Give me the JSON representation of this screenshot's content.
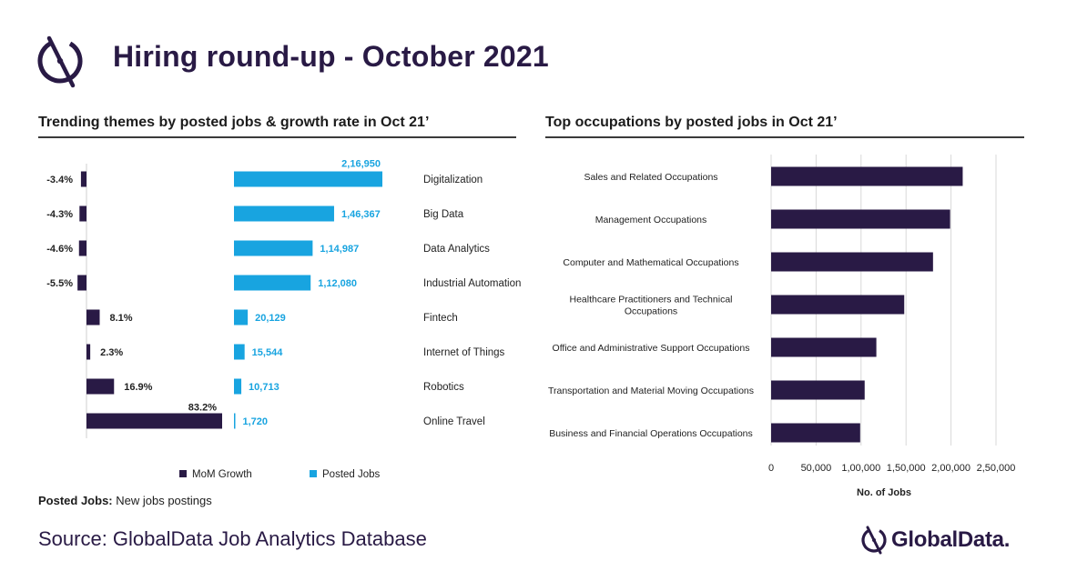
{
  "title": "Hiring round-up - October 2021",
  "colors": {
    "navy": "#291a45",
    "blue": "#18a4e0"
  },
  "left_section": {
    "title": "Trending themes by posted jobs & growth rate in Oct 21’",
    "legend": {
      "mom": "MoM Growth",
      "posted": "Posted Jobs"
    }
  },
  "right_section": {
    "title": "Top occupations by posted jobs in Oct 21’"
  },
  "footnote": {
    "label": "Posted Jobs:",
    "text": " New jobs postings"
  },
  "source": "Source: GlobalData Job Analytics Database",
  "brand": "GlobalData.",
  "chart_data": [
    {
      "type": "bar",
      "orientation": "horizontal",
      "title": "Trending themes by posted jobs & growth rate in Oct 21’",
      "categories": [
        "Digitalization",
        "Big Data",
        "Data Analytics",
        "Industrial Automation",
        "Fintech",
        "Internet of Things",
        "Robotics",
        "Online Travel"
      ],
      "series": [
        {
          "name": "MoM Growth",
          "values": [
            -3.4,
            -4.3,
            -4.6,
            -5.5,
            8.1,
            2.3,
            16.9,
            83.2
          ],
          "labels": [
            "-3.4%",
            "-4.3%",
            "-4.6%",
            "-5.5%",
            "8.1%",
            "2.3%",
            "16.9%",
            "83.2%"
          ]
        },
        {
          "name": "Posted Jobs",
          "values": [
            216950,
            146367,
            114987,
            112080,
            20129,
            15544,
            10713,
            1720
          ],
          "labels": [
            "2,16,950",
            "1,46,367",
            "1,14,987",
            "1,12,080",
            "20,129",
            "15,544",
            "10,713",
            "1,720"
          ]
        }
      ],
      "legend": "bottom",
      "grid": false
    },
    {
      "type": "bar",
      "orientation": "horizontal",
      "title": "Top occupations by posted jobs in Oct 21’",
      "categories": [
        [
          "Sales and Related Occupations"
        ],
        [
          "Management Occupations"
        ],
        [
          "Computer and Mathematical Occupations"
        ],
        [
          "Healthcare Practitioners and Technical",
          "Occupations"
        ],
        [
          "Office and Administrative Support Occupations"
        ],
        [
          "Transportation and Material Moving Occupations"
        ],
        [
          "Business and Financial Operations Occupations"
        ]
      ],
      "values": [
        213000,
        199000,
        180000,
        148000,
        117000,
        104000,
        99000
      ],
      "xlabel": "No. of Jobs",
      "xlim": [
        0,
        250000
      ],
      "ticks": [
        0,
        50000,
        100000,
        150000,
        200000,
        250000
      ],
      "tick_labels": [
        "0",
        "50,000",
        "1,00,000",
        "1,50,000",
        "2,00,000",
        "2,50,000"
      ],
      "grid": true
    }
  ]
}
